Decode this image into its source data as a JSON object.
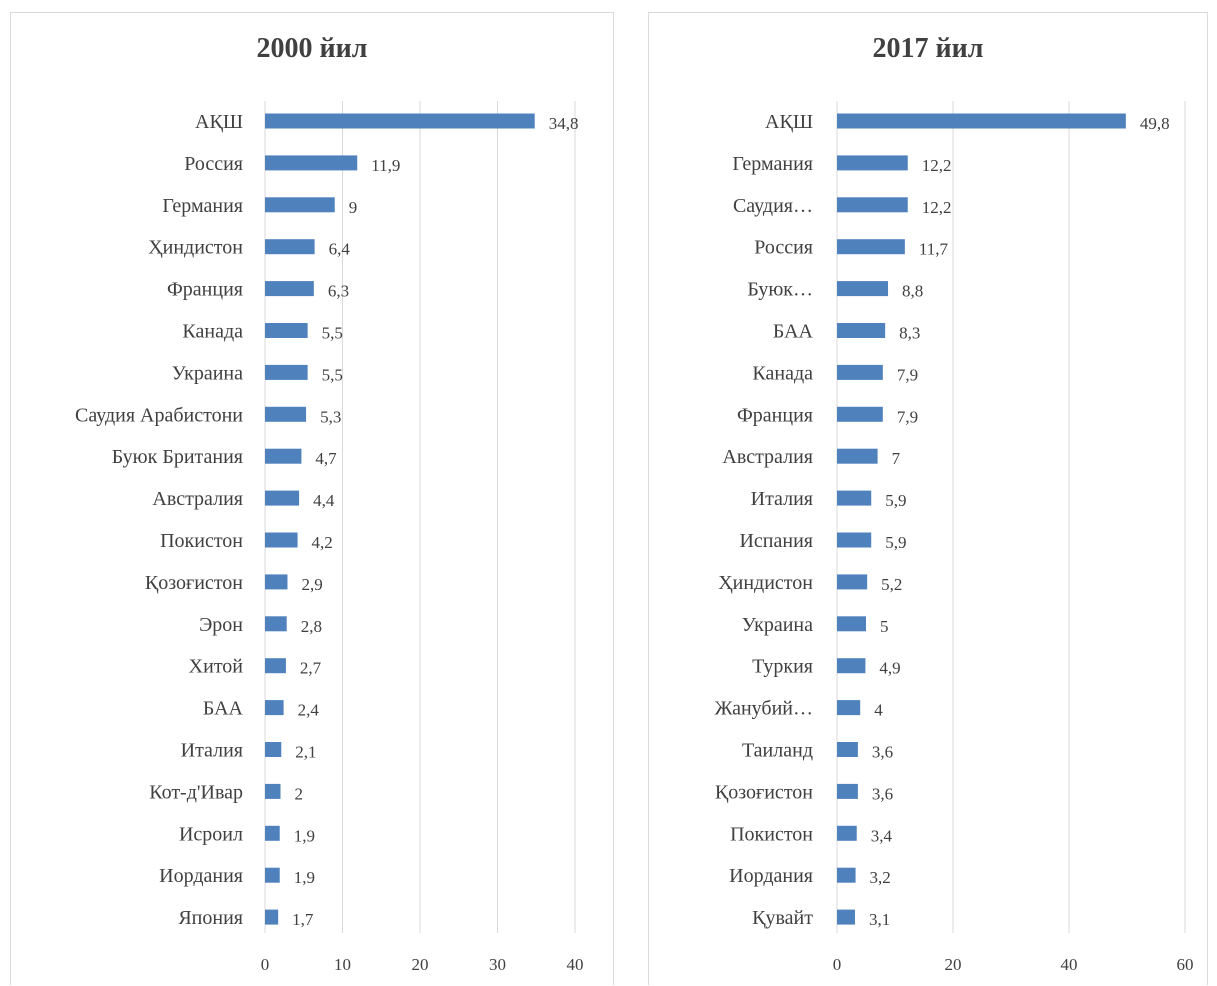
{
  "chart_data": [
    {
      "type": "bar",
      "orientation": "horizontal",
      "title": "2000 йил",
      "categories": [
        "АҚШ",
        "Россия",
        "Германия",
        "Ҳиндистон",
        "Франция",
        "Канада",
        "Украина",
        "Саудия Арабистони",
        "Буюк Британия",
        "Австралия",
        "Покистон",
        "Қозоғистон",
        "Эрон",
        "Хитой",
        "БАА",
        "Италия",
        "Кот-д'Ивар",
        "Исроил",
        "Иордания",
        "Япония"
      ],
      "values": [
        34.8,
        11.9,
        9,
        6.4,
        6.3,
        5.5,
        5.5,
        5.3,
        4.7,
        4.4,
        4.2,
        2.9,
        2.8,
        2.7,
        2.4,
        2.1,
        2,
        1.9,
        1.9,
        1.7
      ],
      "value_labels": [
        "34,8",
        "11,9",
        "9",
        "6,4",
        "6,3",
        "5,5",
        "5,5",
        "5,3",
        "4,7",
        "4,4",
        "4,2",
        "2,9",
        "2,8",
        "2,7",
        "2,4",
        "2,1",
        "2",
        "1,9",
        "1,9",
        "1,7"
      ],
      "xlim": [
        0,
        40
      ],
      "xticks": [
        "0",
        "10",
        "20",
        "30",
        "40"
      ],
      "grid": true,
      "bar_color": "#4f81bd"
    },
    {
      "type": "bar",
      "orientation": "horizontal",
      "title": "2017 йил",
      "categories": [
        "АҚШ",
        "Германия",
        "Саудия…",
        "Россия",
        "Буюк…",
        "БАА",
        "Канада",
        "Франция",
        "Австралия",
        "Италия",
        "Испания",
        "Ҳиндистон",
        "Украина",
        "Туркия",
        "Жанубий…",
        "Таиланд",
        "Қозоғистон",
        "Покистон",
        "Иордания",
        "Қувайт"
      ],
      "values": [
        49.8,
        12.2,
        12.2,
        11.7,
        8.8,
        8.3,
        7.9,
        7.9,
        7,
        5.9,
        5.9,
        5.2,
        5,
        4.9,
        4,
        3.6,
        3.6,
        3.4,
        3.2,
        3.1
      ],
      "value_labels": [
        "49,8",
        "12,2",
        "12,2",
        "11,7",
        "8,8",
        "8,3",
        "7,9",
        "7,9",
        "7",
        "5,9",
        "5,9",
        "5,2",
        "5",
        "4,9",
        "4",
        "3,6",
        "3,6",
        "3,4",
        "3,2",
        "3,1"
      ],
      "xlim": [
        0,
        60
      ],
      "xticks": [
        "0",
        "20",
        "40",
        "60"
      ],
      "grid": true,
      "bar_color": "#4f81bd"
    }
  ]
}
